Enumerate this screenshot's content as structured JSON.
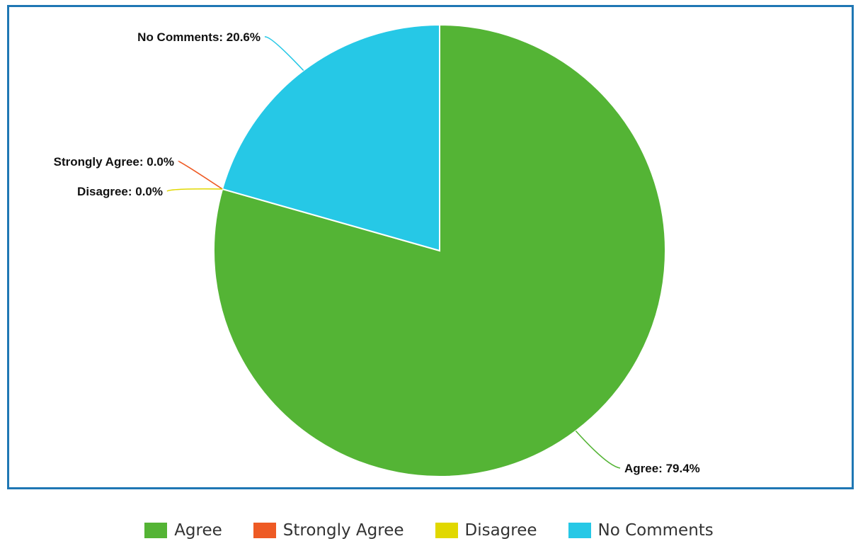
{
  "chart_data": {
    "type": "pie",
    "title": "",
    "slices": [
      {
        "name": "Agree",
        "value": 79.4,
        "label": "Agree: 79.4%",
        "color": "#54b435"
      },
      {
        "name": "Strongly Agree",
        "value": 0.0,
        "label": "Strongly Agree: 0.0%",
        "color": "#ee5a24"
      },
      {
        "name": "Disagree",
        "value": 0.0,
        "label": "Disagree: 0.0%",
        "color": "#e1d800"
      },
      {
        "name": "No Comments",
        "value": 20.6,
        "label": "No Comments: 20.6%",
        "color": "#26c8e6"
      }
    ],
    "legend": {
      "placement": "bottom",
      "entries": [
        "Agree",
        "Strongly Agree",
        "Disagree",
        "No Comments"
      ]
    }
  },
  "frame_color": "#1f77b4"
}
